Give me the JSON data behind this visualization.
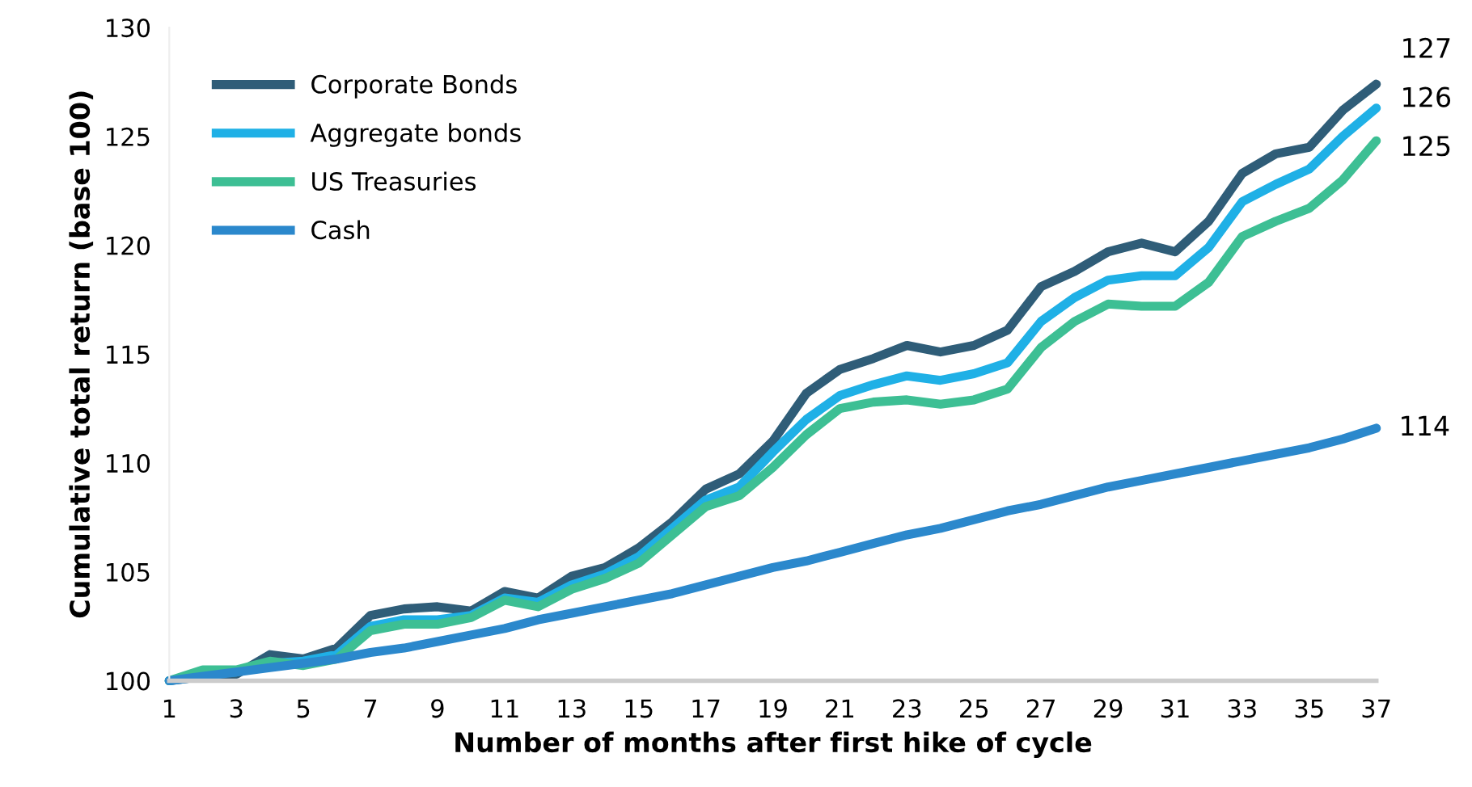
{
  "chart_data": {
    "type": "line",
    "xlabel": "Number of months after first hike of cycle",
    "ylabel": "Cumulative total return (base 100)",
    "x": [
      1,
      2,
      3,
      4,
      5,
      6,
      7,
      8,
      9,
      10,
      11,
      12,
      13,
      14,
      15,
      16,
      17,
      18,
      19,
      20,
      21,
      22,
      23,
      24,
      25,
      26,
      27,
      28,
      29,
      30,
      31,
      32,
      33,
      34,
      35,
      36,
      37
    ],
    "xlim": [
      1,
      37
    ],
    "xticks": [
      1,
      3,
      5,
      7,
      9,
      11,
      13,
      15,
      17,
      19,
      21,
      23,
      25,
      27,
      29,
      31,
      33,
      35,
      37
    ],
    "ylim": [
      100,
      130
    ],
    "yticks": [
      100,
      105,
      110,
      115,
      120,
      125,
      130
    ],
    "grid": false,
    "legend": "top left",
    "marker": "none",
    "line_style": "solid",
    "annotations": [
      "127",
      "126",
      "125",
      "114"
    ],
    "series": [
      {
        "name": "Corporate Bonds",
        "color": "#2f5d78",
        "values": [
          100,
          100.2,
          100.3,
          101.2,
          101.0,
          101.5,
          103.0,
          103.3,
          103.4,
          103.2,
          104.1,
          103.8,
          104.8,
          105.2,
          106.1,
          107.3,
          108.8,
          109.5,
          111.0,
          113.2,
          114.3,
          114.8,
          115.4,
          115.1,
          115.4,
          116.1,
          118.1,
          118.8,
          119.7,
          120.1,
          119.7,
          121.1,
          123.3,
          124.2,
          124.5,
          126.2,
          127.4
        ]
      },
      {
        "name": "Aggregate bonds",
        "color": "#1fb0e6",
        "values": [
          100,
          100.3,
          100.4,
          100.8,
          100.9,
          101.2,
          102.5,
          102.8,
          102.8,
          103.0,
          103.8,
          103.6,
          104.4,
          104.9,
          105.7,
          107.0,
          108.3,
          108.9,
          110.5,
          112.0,
          113.1,
          113.6,
          114.0,
          113.8,
          114.1,
          114.6,
          116.5,
          117.6,
          118.4,
          118.6,
          118.6,
          119.9,
          122.0,
          122.8,
          123.5,
          125.0,
          126.3
        ]
      },
      {
        "name": "US Treasuries",
        "color": "#3dbf94",
        "values": [
          100,
          100.5,
          100.5,
          100.9,
          100.7,
          101.0,
          102.3,
          102.6,
          102.6,
          102.9,
          103.7,
          103.4,
          104.2,
          104.7,
          105.4,
          106.7,
          108.0,
          108.5,
          109.8,
          111.3,
          112.5,
          112.8,
          112.9,
          112.7,
          112.9,
          113.4,
          115.3,
          116.5,
          117.3,
          117.2,
          117.2,
          118.3,
          120.4,
          121.1,
          121.7,
          123.0,
          124.8
        ]
      },
      {
        "name": "Cash",
        "color": "#2b88cc",
        "values": [
          100,
          100.2,
          100.4,
          100.6,
          100.8,
          101.0,
          101.3,
          101.5,
          101.8,
          102.1,
          102.4,
          102.8,
          103.1,
          103.4,
          103.7,
          104.0,
          104.4,
          104.8,
          105.2,
          105.5,
          105.9,
          106.3,
          106.7,
          107.0,
          107.4,
          107.8,
          108.1,
          108.5,
          108.9,
          109.2,
          109.5,
          109.8,
          110.1,
          110.4,
          110.7,
          111.1,
          111.6
        ]
      }
    ]
  }
}
